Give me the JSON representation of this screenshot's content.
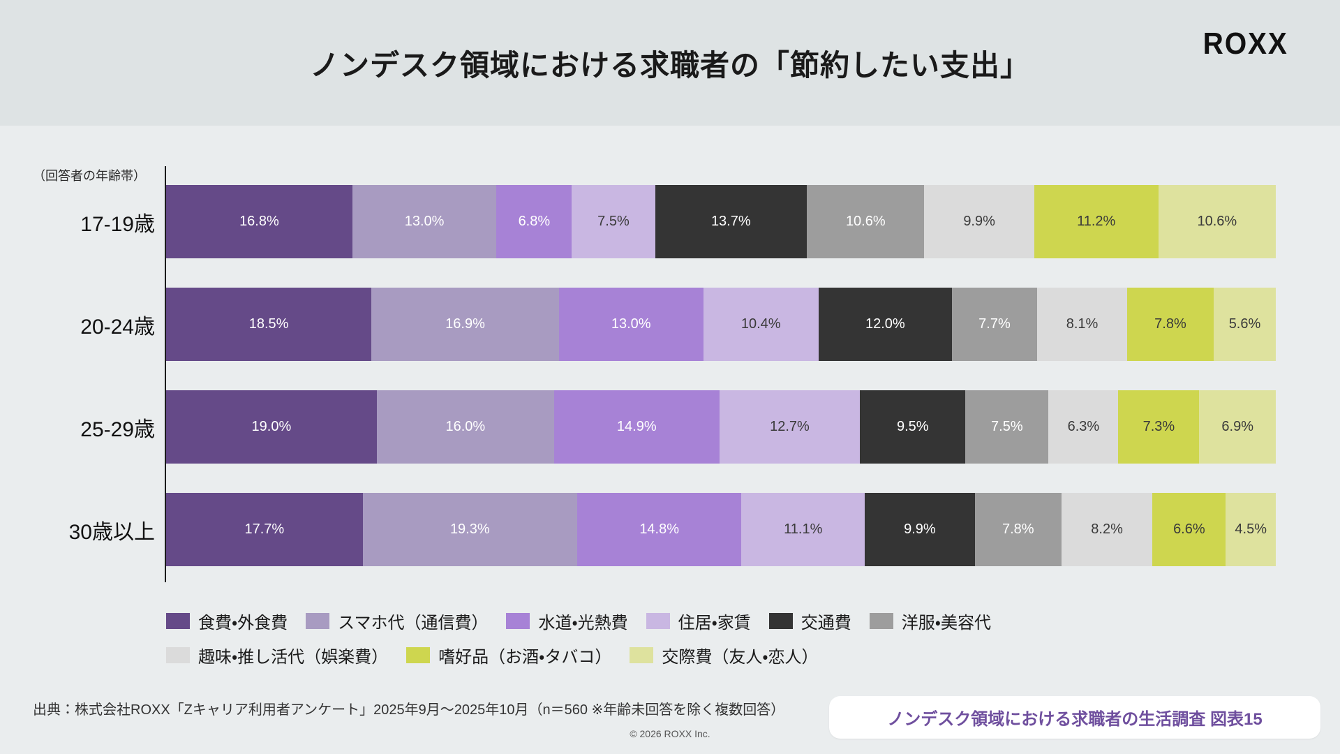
{
  "header": {
    "title": "ノンデスク領域における求職者の「節約したい支出」",
    "logo_text": "ROXX"
  },
  "chart_data": {
    "type": "bar",
    "orientation": "horizontal-stacked",
    "axis_note": "（回答者の年齢帯）",
    "unit": "%",
    "xlim": [
      0,
      100
    ],
    "grid": false,
    "legend_position": "bottom",
    "legend_row_break": 6,
    "categories": [
      "17-19歳",
      "20-24歳",
      "25-29歳",
      "30歳以上"
    ],
    "series": [
      {
        "name": "食費・外食費",
        "color": "#654A88",
        "label_color": "#FFFFFF",
        "values": [
          16.8,
          18.5,
          19.0,
          17.7
        ]
      },
      {
        "name": "スマホ代（通信費）",
        "color": "#A89BC1",
        "label_color": "#FFFFFF",
        "values": [
          13.0,
          16.9,
          16.0,
          19.3
        ]
      },
      {
        "name": "水道・光熱費",
        "color": "#A782D6",
        "label_color": "#FFFFFF",
        "values": [
          6.8,
          13.0,
          14.9,
          14.8
        ]
      },
      {
        "name": "住居・家賃",
        "color": "#C9B7E2",
        "label_color": "#3A3A3A",
        "values": [
          7.5,
          10.4,
          12.7,
          11.1
        ]
      },
      {
        "name": "交通費",
        "color": "#343434",
        "label_color": "#FFFFFF",
        "values": [
          13.7,
          12.0,
          9.5,
          9.9
        ]
      },
      {
        "name": "洋服・美容代",
        "color": "#9D9D9D",
        "label_color": "#FFFFFF",
        "values": [
          10.6,
          7.7,
          7.5,
          7.8
        ]
      },
      {
        "name": "趣味・推し活代（娯楽費）",
        "color": "#DBDBDB",
        "label_color": "#3A3A3A",
        "values": [
          9.9,
          8.1,
          6.3,
          8.2
        ]
      },
      {
        "name": "嗜好品（お酒・タバコ）",
        "color": "#CED64F",
        "label_color": "#3A3A3A",
        "values": [
          11.2,
          7.8,
          7.3,
          6.6
        ]
      },
      {
        "name": "交際費（友人・恋人）",
        "color": "#DEE29E",
        "label_color": "#3A3A3A",
        "values": [
          10.6,
          5.6,
          6.9,
          4.5
        ]
      }
    ]
  },
  "footer": {
    "source": "出典：株式会社ROXX「Zキャリア利用者アンケート」2025年9月～2025年10月（n＝560 ※年齢未回答を除く複数回答）",
    "copyright": "© 2026 ROXX Inc.",
    "badge": "ノンデスク領域における求職者の生活調査 図表15"
  },
  "colors": {
    "header_bg": "#DEE3E4",
    "body_bg": "#EAEDEE",
    "badge_bg": "#FFFFFF",
    "badge_text": "#6F4F9E",
    "title_text": "#1A1A1A"
  }
}
